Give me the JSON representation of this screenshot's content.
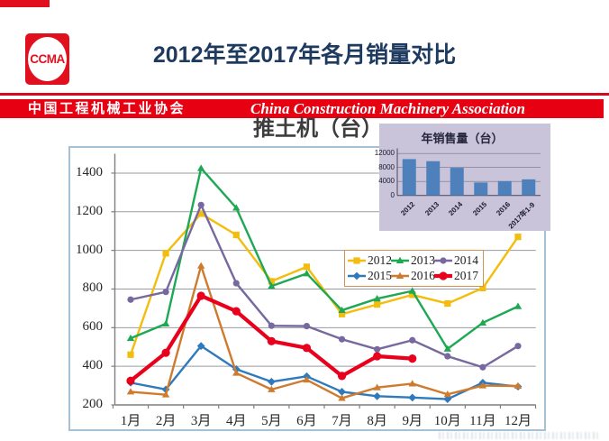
{
  "header": {
    "logo_text": "CCMA",
    "title": "2012年至2017年各月销量对比"
  },
  "banner": {
    "cn": "中国工程机械工业协会",
    "en": "China Construction Machinery Association"
  },
  "chart_data": [
    {
      "id": "monthly-sales",
      "type": "line",
      "title": "推土机（台）",
      "categories": [
        "1月",
        "2月",
        "3月",
        "4月",
        "5月",
        "6月",
        "7月",
        "8月",
        "9月",
        "10月",
        "11月",
        "12月"
      ],
      "ylim": [
        200,
        1500
      ],
      "yticks": [
        200,
        400,
        600,
        800,
        1000,
        1200,
        1400
      ],
      "grid": true,
      "legend_position": "inside-right",
      "series": [
        {
          "name": "2012",
          "color": "#f2bd0d",
          "marker": "square",
          "width": 2.4,
          "values": [
            460,
            985,
            1190,
            1080,
            840,
            915,
            670,
            720,
            770,
            725,
            805,
            1070
          ]
        },
        {
          "name": "2013",
          "color": "#1ea854",
          "marker": "triangle",
          "width": 2.4,
          "values": [
            545,
            620,
            1425,
            1220,
            815,
            880,
            690,
            750,
            790,
            490,
            625,
            710
          ]
        },
        {
          "name": "2014",
          "color": "#77689f",
          "marker": "circle",
          "width": 2.4,
          "values": [
            745,
            785,
            1235,
            830,
            610,
            608,
            540,
            488,
            535,
            452,
            395,
            505
          ]
        },
        {
          "name": "2015",
          "color": "#2f7abc",
          "marker": "diamond",
          "width": 2.4,
          "values": [
            315,
            280,
            505,
            385,
            320,
            348,
            268,
            245,
            238,
            230,
            315,
            295
          ]
        },
        {
          "name": "2016",
          "color": "#cf7b2e",
          "marker": "triangle",
          "width": 2.4,
          "values": [
            268,
            253,
            920,
            365,
            280,
            330,
            235,
            290,
            310,
            255,
            300,
            298
          ]
        },
        {
          "name": "2017",
          "color": "#e8001c",
          "marker": "circle",
          "width": 4.2,
          "values": [
            325,
            470,
            765,
            685,
            530,
            495,
            350,
            452,
            440
          ]
        }
      ]
    },
    {
      "id": "annual-sales",
      "type": "bar",
      "title": "年销售量（台）",
      "categories": [
        "2012",
        "2013",
        "2014",
        "2015",
        "2016",
        "2017年1-9"
      ],
      "values": [
        10400,
        9800,
        7900,
        3700,
        4100,
        4600
      ],
      "yticks": [
        0,
        4000,
        8000,
        12000
      ],
      "ylim": [
        0,
        13200
      ],
      "bar_color": "#4e81bc",
      "background": "#c9c4da"
    }
  ]
}
